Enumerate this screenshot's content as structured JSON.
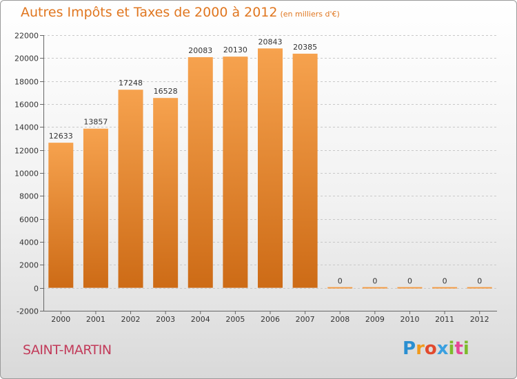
{
  "title": "Autres Impôts et Taxes de 2000 à 2012",
  "title_unit": "(en milliers d'€)",
  "location": "SAINT-MARTIN",
  "logo": {
    "letters": [
      "P",
      "r",
      "o",
      "x",
      "i",
      "t",
      "i"
    ],
    "colors": [
      "#2a8fd1",
      "#f19a1c",
      "#e24a2e",
      "#3aa0e0",
      "#7dbb2c",
      "#e64696",
      "#7dbb2c"
    ]
  },
  "colors": {
    "bar_light": "#f6a24e",
    "bar_dark": "#cd6b16",
    "zero_bar": "#f39c46",
    "axis": "#666666"
  },
  "chart_data": {
    "type": "bar",
    "categories": [
      "2000",
      "2001",
      "2002",
      "2003",
      "2004",
      "2005",
      "2006",
      "2007",
      "2008",
      "2009",
      "2010",
      "2011",
      "2012"
    ],
    "values": [
      12633,
      13857,
      17248,
      16528,
      20083,
      20130,
      20843,
      20385,
      0,
      0,
      0,
      0,
      0
    ],
    "data_labels": [
      "12633",
      "13857",
      "17248",
      "16528",
      "20083",
      "20130",
      "20843",
      "20385",
      "0",
      "0",
      "0",
      "0",
      "0"
    ],
    "ylim": [
      -2000,
      22000
    ],
    "yticks": [
      -2000,
      0,
      2000,
      4000,
      6000,
      8000,
      10000,
      12000,
      14000,
      16000,
      18000,
      20000,
      22000
    ],
    "ytick_labels": [
      "-2000",
      "0",
      "2000",
      "4000",
      "6000",
      "8000",
      "10000",
      "12000",
      "14000",
      "16000",
      "18000",
      "20000",
      "22000"
    ],
    "grid": "horizontal dashed",
    "title": "Autres Impôts et Taxes de 2000 à 2012",
    "xlabel": "",
    "ylabel": ""
  }
}
